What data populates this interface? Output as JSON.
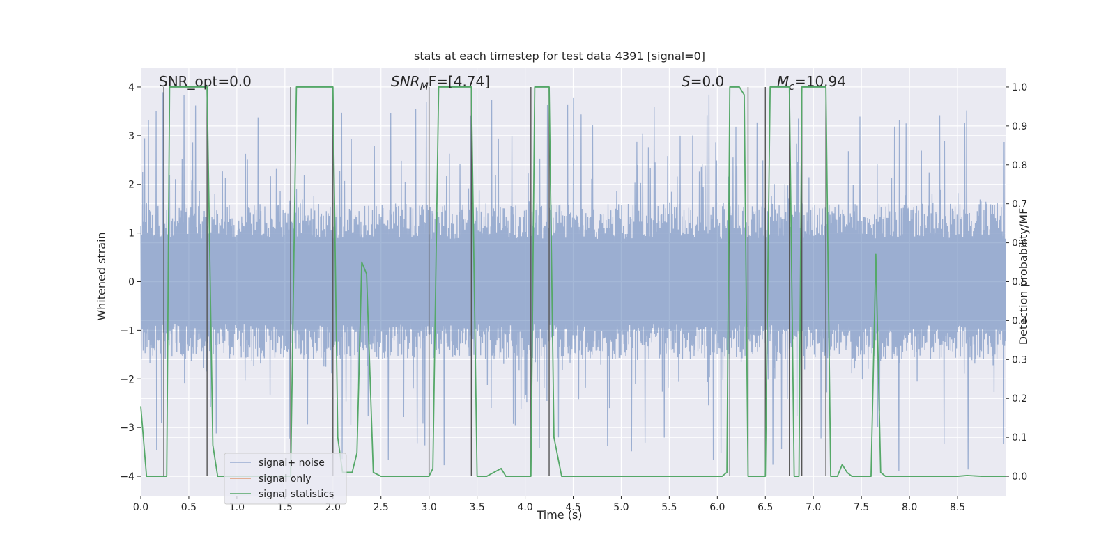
{
  "chart_data": {
    "type": "line",
    "title": "stats at each timestep for test data 4391 [signal=0]",
    "xlabel": "Time (s)",
    "ylabel": "Whitened strain",
    "y2label": "Detection probability/MF",
    "xlim": [
      0.0,
      9.0
    ],
    "ylim": [
      -4.4,
      4.4
    ],
    "y2lim": [
      -0.05,
      1.05
    ],
    "xticks": [
      0.0,
      0.5,
      1.0,
      1.5,
      2.0,
      2.5,
      3.0,
      3.5,
      4.0,
      4.5,
      5.0,
      5.5,
      6.0,
      6.5,
      7.0,
      7.5,
      8.0,
      8.5
    ],
    "xtick_labels": [
      "0.0",
      "0.5",
      "1.0",
      "1.5",
      "2.0",
      "2.5",
      "3.0",
      "3.5",
      "4.0",
      "4.5",
      "5.0",
      "5.5",
      "6.0",
      "6.5",
      "7.0",
      "7.5",
      "8.0",
      "8.5"
    ],
    "yticks": [
      -4,
      -3,
      -2,
      -1,
      0,
      1,
      2,
      3,
      4
    ],
    "ytick_labels": [
      "−4",
      "−3",
      "−2",
      "−1",
      "0",
      "1",
      "2",
      "3",
      "4"
    ],
    "y2ticks": [
      0.0,
      0.1,
      0.2,
      0.3,
      0.4,
      0.5,
      0.6,
      0.7,
      0.8,
      0.9,
      1.0
    ],
    "y2tick_labels": [
      "0.0",
      "0.1",
      "0.2",
      "0.3",
      "0.4",
      "0.5",
      "0.6",
      "0.7",
      "0.8",
      "0.9",
      "1.0"
    ],
    "annotations": {
      "snr_opt": "SNR_opt=0.0",
      "snr_mf_main": "SNR",
      "snr_mf_sub": "M",
      "snr_mf_rest": "F=[4.74]",
      "s_italic": "S",
      "s_value": "=0.0",
      "mc_main": "M",
      "mc_sub": "c",
      "mc_value": "=10.94"
    },
    "noise_envelope": {
      "typical_abs": 1.6,
      "max_abs": 3.9,
      "approx_samples": 1800
    },
    "events": [
      0.24,
      0.69,
      1.56,
      2.0,
      3.0,
      3.44,
      4.06,
      4.25,
      6.13,
      6.32,
      6.5,
      6.75,
      6.88,
      7.13
    ],
    "series": [
      {
        "name": "signal+ noise",
        "color": "#4c72b0",
        "axis": "left",
        "values": []
      },
      {
        "name": "signal only",
        "color": "#dd8452",
        "axis": "left",
        "values": []
      },
      {
        "name": "signal statistics",
        "color": "#55a868",
        "axis": "right",
        "x": [
          0.0,
          0.06,
          0.2,
          0.24,
          0.27,
          0.3,
          0.65,
          0.69,
          0.75,
          0.8,
          1.4,
          1.56,
          1.62,
          1.95,
          2.0,
          2.05,
          2.1,
          2.2,
          2.25,
          2.3,
          2.35,
          2.42,
          2.5,
          2.9,
          3.0,
          3.04,
          3.1,
          3.4,
          3.44,
          3.5,
          3.6,
          3.75,
          3.8,
          4.0,
          4.06,
          4.1,
          4.2,
          4.25,
          4.3,
          4.38,
          4.45,
          4.6,
          5.5,
          6.05,
          6.1,
          6.13,
          6.18,
          6.23,
          6.28,
          6.32,
          6.36,
          6.45,
          6.5,
          6.55,
          6.7,
          6.75,
          6.8,
          6.85,
          6.88,
          6.93,
          7.1,
          7.13,
          7.18,
          7.25,
          7.3,
          7.35,
          7.4,
          7.6,
          7.65,
          7.7,
          7.75,
          8.5,
          8.6,
          8.75,
          9.0
        ],
        "values": [
          0.18,
          0.0,
          0.0,
          0.0,
          0.0,
          1.0,
          1.0,
          1.0,
          0.08,
          0.0,
          0.0,
          0.0,
          1.0,
          1.0,
          1.0,
          0.1,
          0.01,
          0.01,
          0.06,
          0.55,
          0.52,
          0.01,
          0.0,
          0.0,
          0.0,
          0.02,
          1.0,
          1.0,
          1.0,
          0.0,
          0.0,
          0.02,
          0.0,
          0.0,
          0.0,
          1.0,
          1.0,
          1.0,
          0.1,
          0.0,
          0.0,
          0.0,
          0.0,
          0.0,
          0.01,
          1.0,
          1.0,
          1.0,
          0.98,
          0.0,
          0.0,
          0.0,
          0.0,
          1.0,
          1.0,
          1.0,
          0.0,
          0.0,
          1.0,
          1.0,
          1.0,
          1.0,
          0.0,
          0.0,
          0.03,
          0.01,
          0.0,
          0.0,
          0.57,
          0.01,
          0.0,
          0.0,
          0.002,
          0.0,
          0.0
        ]
      }
    ],
    "legend": {
      "placement": "lower-left",
      "entries": [
        "signal+ noise",
        "signal only",
        "signal statistics"
      ]
    },
    "grid": true
  }
}
